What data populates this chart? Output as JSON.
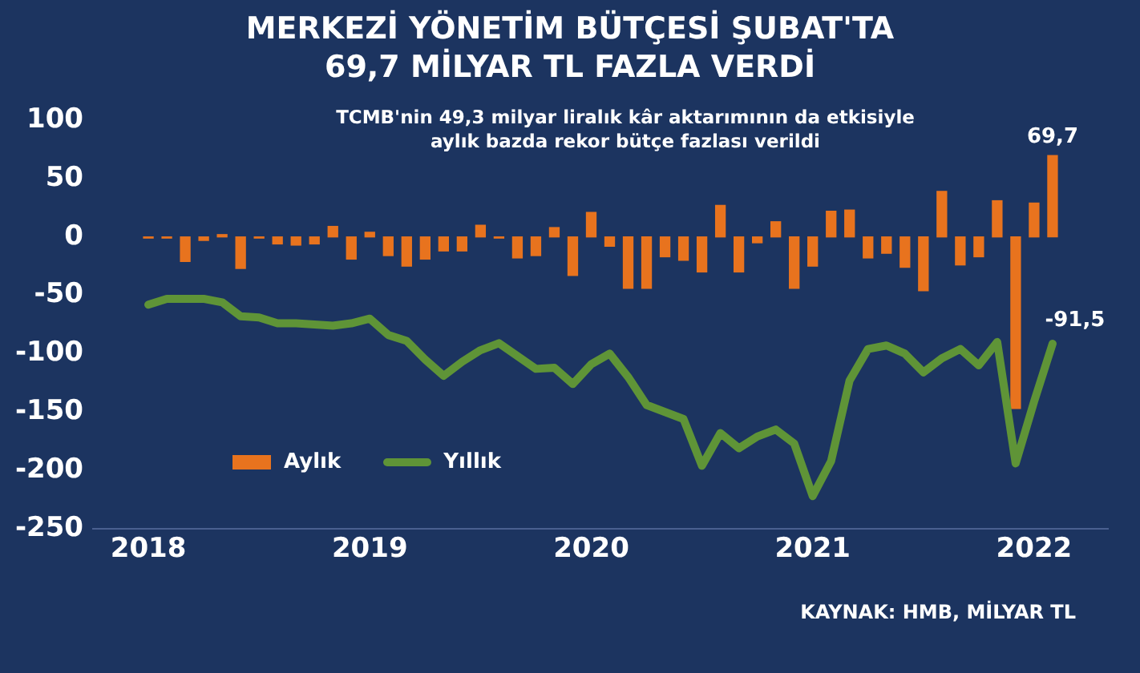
{
  "chart_data": {
    "type": "bar",
    "title": "MERKEZİ YÖNETİM BÜTÇESİ ŞUBAT'TA\n69,7 MİLYAR TL FAZLA VERDİ",
    "subtitle": "TCMB'nin 49,3 milyar liralık kâr aktarımının da etkisiyle\naylık bazda rekor bütçe fazlası verildi",
    "annotations": [
      "KAYNAK: HMB, MİLYAR TL"
    ],
    "x": [
      "2018-01",
      "2018-02",
      "2018-03",
      "2018-04",
      "2018-05",
      "2018-06",
      "2018-07",
      "2018-08",
      "2018-09",
      "2018-10",
      "2018-11",
      "2018-12",
      "2019-01",
      "2019-02",
      "2019-03",
      "2019-04",
      "2019-05",
      "2019-06",
      "2019-07",
      "2019-08",
      "2019-09",
      "2019-10",
      "2019-11",
      "2019-12",
      "2020-01",
      "2020-02",
      "2020-03",
      "2020-04",
      "2020-05",
      "2020-06",
      "2020-07",
      "2020-08",
      "2020-09",
      "2020-10",
      "2020-11",
      "2020-12",
      "2021-01",
      "2021-02",
      "2021-03",
      "2021-04",
      "2021-05",
      "2021-06",
      "2021-07",
      "2021-08",
      "2021-09",
      "2021-10",
      "2021-11",
      "2021-12",
      "2022-01",
      "2022-02"
    ],
    "series": [
      {
        "name": "Aylık",
        "color": "#e8731e",
        "values": [
          -1,
          -1,
          -21,
          -3,
          2,
          -27,
          -1,
          -6,
          -7,
          -6,
          9,
          -19,
          4,
          -16,
          -25,
          -19,
          -12,
          -12,
          10,
          -1,
          -18,
          -16,
          8,
          -33,
          21,
          -8,
          -44,
          -44,
          -17,
          -20,
          -30,
          27,
          -30,
          -5,
          13,
          -44,
          -25,
          22,
          23,
          -18,
          -14,
          -26,
          -46,
          39,
          -24,
          -17,
          31,
          -147,
          29,
          69.7
        ],
        "value_labels": [
          null,
          null,
          null,
          null,
          null,
          null,
          null,
          null,
          null,
          null,
          null,
          null,
          null,
          null,
          null,
          null,
          null,
          null,
          null,
          null,
          null,
          null,
          null,
          null,
          null,
          null,
          null,
          null,
          null,
          null,
          null,
          null,
          null,
          null,
          null,
          null,
          null,
          null,
          null,
          null,
          null,
          null,
          null,
          null,
          null,
          null,
          null,
          null,
          null,
          "69,7"
        ]
      },
      {
        "name": "Yıllık",
        "type": "line",
        "color": "#5f9437",
        "values": [
          -58,
          -53,
          -53,
          -53,
          -56,
          -68,
          -69,
          -74,
          -74,
          -75,
          -76,
          -74,
          -70,
          -84,
          -89,
          -105,
          -119,
          -107,
          -97,
          -91,
          -102,
          -113,
          -112,
          -126,
          -109,
          -100,
          -120,
          -144,
          -150,
          -156,
          -196,
          -168,
          -181,
          -171,
          -165,
          -177,
          -222,
          -192,
          -123,
          -96,
          -93,
          -100,
          -116,
          -104,
          -96,
          -110,
          -90,
          -194,
          -141,
          -91.5
        ],
        "value_labels": [
          null,
          null,
          null,
          null,
          null,
          null,
          null,
          null,
          null,
          null,
          null,
          null,
          null,
          null,
          null,
          null,
          null,
          null,
          null,
          null,
          null,
          null,
          null,
          null,
          null,
          null,
          null,
          null,
          null,
          null,
          null,
          null,
          null,
          null,
          null,
          null,
          null,
          null,
          null,
          null,
          null,
          null,
          null,
          null,
          null,
          null,
          null,
          null,
          null,
          "-91,5"
        ]
      }
    ],
    "xlim": [
      "2017-10",
      "2022-05"
    ],
    "xticks": [
      "2018",
      "2019",
      "2020",
      "2021",
      "2022"
    ],
    "ylim": [
      -250,
      100
    ],
    "yticks": [
      -250,
      -200,
      -150,
      -100,
      -50,
      0,
      50,
      100
    ],
    "grid": false,
    "legend": "bottom left",
    "marker": "none",
    "line_style": "solid"
  }
}
